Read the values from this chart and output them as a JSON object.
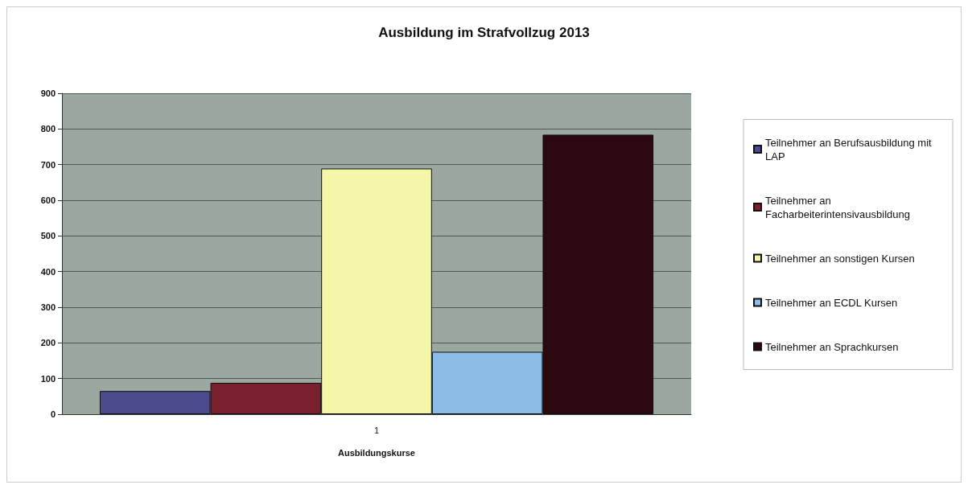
{
  "chart_data": {
    "type": "bar",
    "title": "Ausbildung im Strafvollzug 2013",
    "xlabel": "Ausbildungskurse",
    "categories": [
      "1"
    ],
    "series": [
      {
        "name": "Teilnehmer an Berufsausbildung mit LAP",
        "color": "#4a4a8c",
        "values": [
          65
        ]
      },
      {
        "name": "Teilnehmer an Facharbeiterintensivausbildung",
        "color": "#7a1f2e",
        "values": [
          88
        ]
      },
      {
        "name": "Teilnehmer an sonstigen Kursen",
        "color": "#f4f6a8",
        "values": [
          689
        ]
      },
      {
        "name": "Teilnehmer an ECDL Kursen",
        "color": "#8cbde6",
        "values": [
          175
        ]
      },
      {
        "name": "Teilnehmer an Sprachkursen",
        "color": "#2a0a10",
        "values": [
          784
        ]
      }
    ],
    "ylim": [
      0,
      900
    ],
    "yticks": [
      0,
      100,
      200,
      300,
      400,
      500,
      600,
      700,
      800,
      900
    ],
    "grid": "y",
    "legend": "right"
  }
}
